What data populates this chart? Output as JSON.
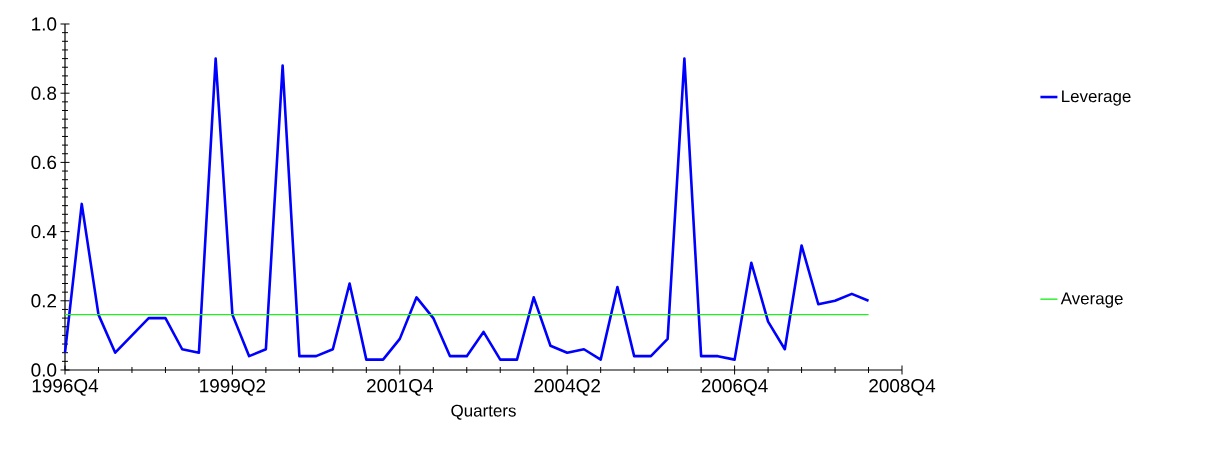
{
  "chart_data": {
    "type": "line",
    "xlabel": "Quarters",
    "categories": [
      "1996Q4",
      null,
      null,
      null,
      null,
      null,
      null,
      null,
      null,
      null,
      "1999Q2",
      null,
      null,
      null,
      null,
      null,
      null,
      null,
      null,
      null,
      "2001Q4",
      null,
      null,
      null,
      null,
      null,
      null,
      null,
      null,
      null,
      "2004Q2",
      null,
      null,
      null,
      null,
      null,
      null,
      null,
      null,
      null,
      "2006Q4",
      null,
      null,
      null,
      null,
      null,
      null,
      null,
      null,
      null,
      "2008Q4"
    ],
    "series": [
      {
        "name": "Leverage",
        "color": "#0000ff",
        "values": [
          0.05,
          0.48,
          0.16,
          0.05,
          0.1,
          0.15,
          0.15,
          0.06,
          0.05,
          0.9,
          0.16,
          0.04,
          0.06,
          0.88,
          0.04,
          0.04,
          0.06,
          0.25,
          0.03,
          0.03,
          0.09,
          0.21,
          0.15,
          0.04,
          0.04,
          0.11,
          0.03,
          0.03,
          0.21,
          0.07,
          0.05,
          0.06,
          0.03,
          0.24,
          0.04,
          0.04,
          0.09,
          0.9,
          0.04,
          0.04,
          0.03,
          0.31,
          0.14,
          0.06,
          0.36,
          0.19,
          0.2,
          0.22,
          0.2,
          null,
          null
        ]
      },
      {
        "name": "Average",
        "color": "#22ee22",
        "values": [
          0.16,
          0.16,
          0.16,
          0.16,
          0.16,
          0.16,
          0.16,
          0.16,
          0.16,
          0.16,
          0.16,
          0.16,
          0.16,
          0.16,
          0.16,
          0.16,
          0.16,
          0.16,
          0.16,
          0.16,
          0.16,
          0.16,
          0.16,
          0.16,
          0.16,
          0.16,
          0.16,
          0.16,
          0.16,
          0.16,
          0.16,
          0.16,
          0.16,
          0.16,
          0.16,
          0.16,
          0.16,
          0.16,
          0.16,
          0.16,
          0.16,
          0.16,
          0.16,
          0.16,
          0.16,
          0.16,
          0.16,
          0.16,
          0.16,
          null,
          null
        ]
      }
    ],
    "ylim": [
      0,
      1.0
    ],
    "yticks": [
      {
        "value": 0,
        "label": "0.0"
      },
      {
        "value": 0.2,
        "label": "0.2"
      },
      {
        "value": 0.4,
        "label": "0.4"
      },
      {
        "value": 0.6,
        "label": "0.6"
      },
      {
        "value": 0.8,
        "label": "0.8"
      },
      {
        "value": 1.0,
        "label": "1.0"
      }
    ],
    "legend": "right",
    "grid": false,
    "marker": "none",
    "line_style": "solid"
  }
}
